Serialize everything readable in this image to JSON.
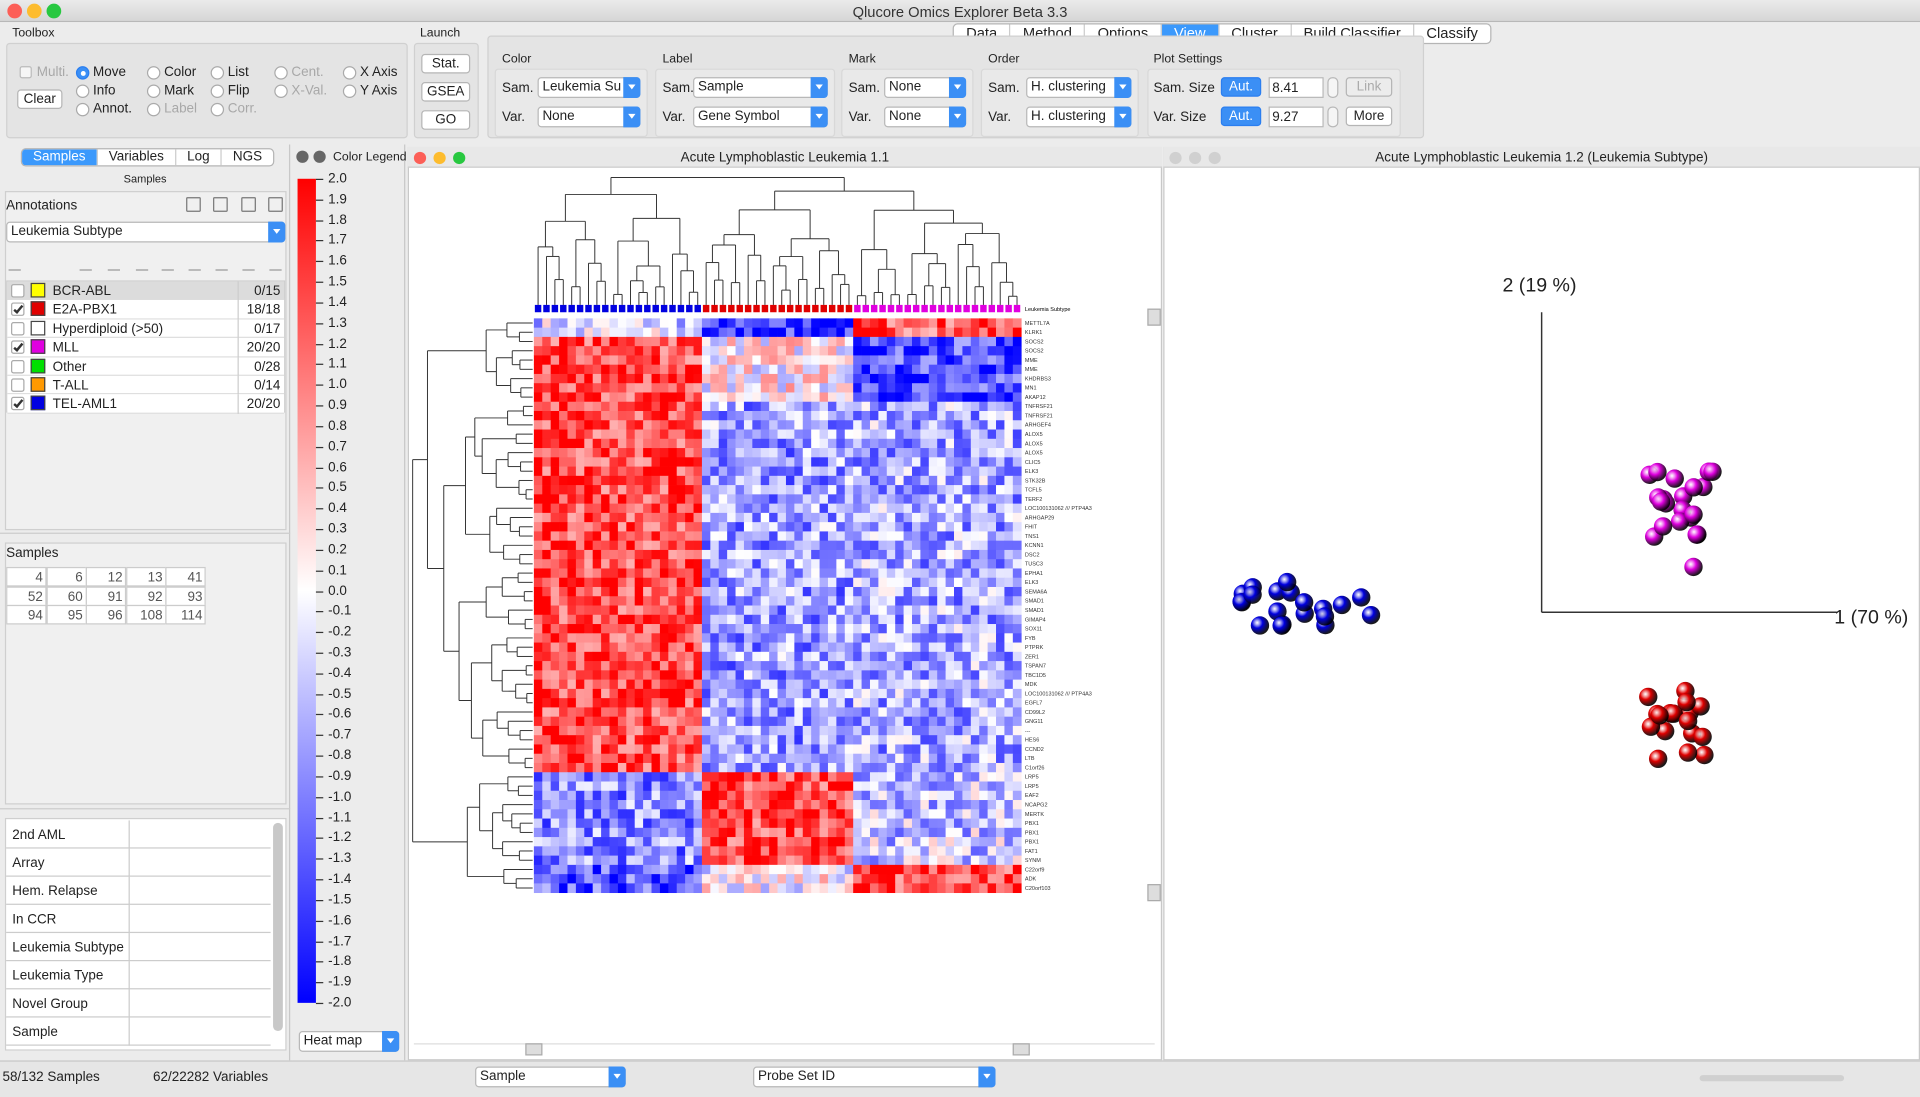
{
  "window_title": "Qlucore Omics Explorer Beta 3.3",
  "menu_tabs": {
    "items": [
      "Data",
      "Method",
      "Options",
      "View",
      "Cluster",
      "Build Classifier",
      "Classify"
    ],
    "active": 3
  },
  "toolbox": {
    "title": "Toolbox",
    "clear": "Clear",
    "items": [
      {
        "label": "Multi.",
        "control": "checkbox",
        "enabled": false,
        "selected": false
      },
      {
        "label": "Move",
        "control": "radio",
        "enabled": true,
        "selected": true
      },
      {
        "label": "Color",
        "control": "radio",
        "enabled": true,
        "selected": false
      },
      {
        "label": "List",
        "control": "radio",
        "enabled": true,
        "selected": false
      },
      {
        "label": "Cent.",
        "control": "radio",
        "enabled": false,
        "selected": false
      },
      {
        "label": "X Axis",
        "control": "radio",
        "enabled": true,
        "selected": false
      },
      {
        "label": "Info",
        "control": "radio",
        "enabled": true,
        "selected": false
      },
      {
        "label": "Mark",
        "control": "radio",
        "enabled": true,
        "selected": false
      },
      {
        "label": "Flip",
        "control": "radio",
        "enabled": true,
        "selected": false
      },
      {
        "label": "X-Val.",
        "control": "radio",
        "enabled": false,
        "selected": false
      },
      {
        "label": "Y Axis",
        "control": "radio",
        "enabled": true,
        "selected": false
      },
      {
        "label": "Annot.",
        "control": "radio",
        "enabled": true,
        "selected": false
      },
      {
        "label": "Label",
        "control": "radio",
        "enabled": false,
        "selected": false
      },
      {
        "label": "Corr.",
        "control": "radio",
        "enabled": false,
        "selected": false
      }
    ]
  },
  "launch": {
    "title": "Launch",
    "buttons": [
      "Stat.",
      "GSEA",
      "GO"
    ]
  },
  "groups": [
    {
      "title": "Color",
      "rows": [
        {
          "label": "Sam.",
          "value": "Leukemia Su"
        },
        {
          "label": "Var.",
          "value": "None"
        }
      ]
    },
    {
      "title": "Label",
      "rows": [
        {
          "label": "Sam.",
          "value": "Sample"
        },
        {
          "label": "Var.",
          "value": "Gene Symbol"
        }
      ]
    },
    {
      "title": "Mark",
      "rows": [
        {
          "label": "Sam.",
          "value": "None"
        },
        {
          "label": "Var.",
          "value": "None"
        }
      ]
    },
    {
      "title": "Order",
      "rows": [
        {
          "label": "Sam.",
          "value": "H. clustering"
        },
        {
          "label": "Var.",
          "value": "H. clustering"
        }
      ]
    }
  ],
  "plot_settings": {
    "title": "Plot Settings",
    "rows": [
      {
        "label": "Sam. Size",
        "auto": "Aut.",
        "value": "8.41",
        "button": "Link"
      },
      {
        "label": "Var. Size",
        "auto": "Aut.",
        "value": "9.27",
        "button": "More"
      }
    ]
  },
  "left_panel": {
    "tabs": {
      "items": [
        "Samples",
        "Variables",
        "Log",
        "NGS"
      ],
      "active": 0
    },
    "header": "Samples",
    "annotations_title": "Annotations",
    "annotation_select": "Leukemia Subtype",
    "annotations": [
      {
        "name": "BCR-ABL",
        "color": "#ffff00",
        "checked": false,
        "count": "0/15"
      },
      {
        "name": "E2A-PBX1",
        "color": "#e00000",
        "checked": true,
        "count": "18/18"
      },
      {
        "name": "Hyperdiploid (>50)",
        "color": "#ffffff",
        "checked": false,
        "count": "0/17"
      },
      {
        "name": "MLL",
        "color": "#e000e0",
        "checked": true,
        "count": "20/20"
      },
      {
        "name": "Other",
        "color": "#00e000",
        "checked": false,
        "count": "0/28"
      },
      {
        "name": "T-ALL",
        "color": "#ff9900",
        "checked": false,
        "count": "0/14"
      },
      {
        "name": "TEL-AML1",
        "color": "#0000e0",
        "checked": true,
        "count": "20/20"
      }
    ],
    "samples_title": "Samples",
    "samples": [
      [
        "4",
        "6",
        "12",
        "13",
        "41"
      ],
      [
        "52",
        "60",
        "91",
        "92",
        "93"
      ],
      [
        "94",
        "95",
        "96",
        "108",
        "114"
      ]
    ],
    "properties": [
      "2nd AML",
      "Array",
      "Hem. Relapse",
      "In CCR",
      "Leukemia Subtype",
      "Leukemia Type",
      "Novel Group",
      "Sample"
    ]
  },
  "color_legend": {
    "title": "Color Legend",
    "select": "Heat map",
    "labels": [
      "2.0",
      "1.9",
      "1.8",
      "1.7",
      "1.6",
      "1.5",
      "1.4",
      "1.3",
      "1.2",
      "1.1",
      "1.0",
      "0.9",
      "0.8",
      "0.7",
      "0.6",
      "0.5",
      "0.4",
      "0.3",
      "0.2",
      "0.1",
      "0.0",
      "-0.1",
      "-0.2",
      "-0.3",
      "-0.4",
      "-0.5",
      "-0.6",
      "-0.7",
      "-0.8",
      "-0.9",
      "-1.0",
      "-1.1",
      "-1.2",
      "-1.3",
      "-1.4",
      "-1.5",
      "-1.6",
      "-1.7",
      "-1.8",
      "-1.9",
      "-2.0"
    ]
  },
  "heatmap_window": {
    "title": "Acute Lymphoblastic Leukemia 1.1",
    "column_annotation": "Leukemia Subtype",
    "genes": [
      "METTL7A",
      "KLRK1",
      "SOCS2",
      "SOCS2",
      "MME",
      "MME",
      "KHDRBS3",
      "MN1",
      "AKAP12",
      "TNFRSF21",
      "TNFRSF21",
      "ARHGEF4",
      "ALOX5",
      "ALOX5",
      "ALOX5",
      "CLIC5",
      "ELK3",
      "STK32B",
      "TCFL5",
      "TERF2",
      "LOC100131062 /// PTP4A3",
      "ARHGAP29",
      "FHIT",
      "TNS1",
      "KCNN1",
      "DSC2",
      "TUSC3",
      "EPHA1",
      "ELK3",
      "SEMA6A",
      "SMAD1",
      "SMAD1",
      "GIMAP4",
      "SOX11",
      "FYB",
      "PTPRK",
      "ZER1",
      "TSPAN7",
      "TBC1D5",
      "MDK",
      "LOC100131062 /// PTP4A3",
      "EGFL7",
      "CD99L2",
      "GNG11",
      "---",
      "HES6",
      "CCND2",
      "LTB",
      "C1orf26",
      "LRP5",
      "LRP5",
      "EAF2",
      "NCAPG2",
      "MERTK",
      "PBX1",
      "PBX1",
      "PBX1",
      "FAT1",
      "SYNM",
      "C22orf9",
      "ADK",
      "C20orf103"
    ]
  },
  "scatter_window": {
    "title": "Acute Lymphoblastic Leukemia 1.2 (Leukemia Subtype)",
    "y_axis_label": "2 (19 %)",
    "x_axis_label": "1 (70 %)"
  },
  "status_bar": {
    "samples": "58/132 Samples",
    "variables": "62/22282 Variables",
    "sample_select": "Sample",
    "variable_select": "Probe Set ID"
  }
}
